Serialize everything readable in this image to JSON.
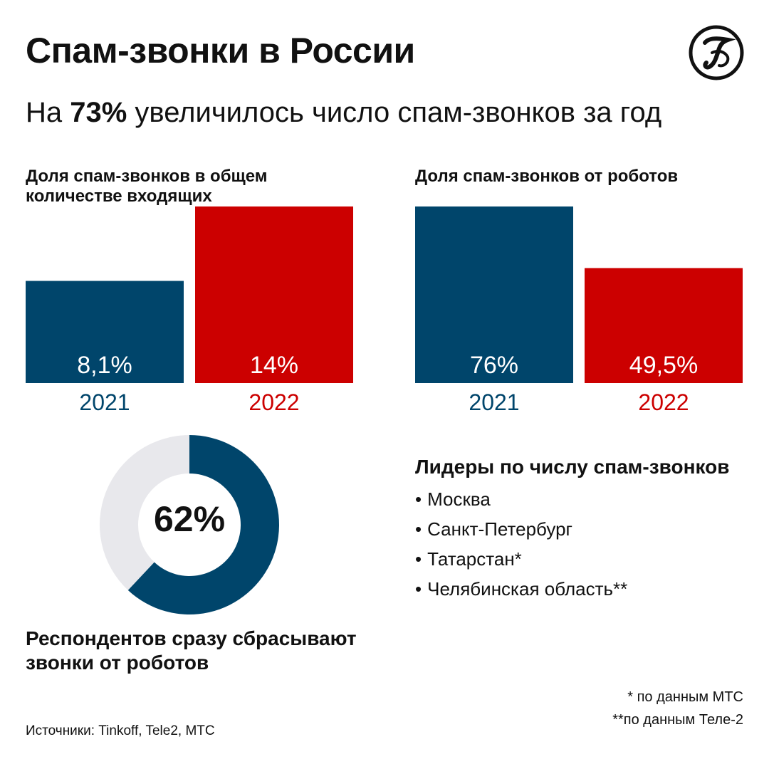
{
  "header": {
    "title": "Спам-звонки в России",
    "subtitle_prefix": "На ",
    "subtitle_highlight": "73%",
    "subtitle_suffix": " увеличилось число спам-звонков за год"
  },
  "colors": {
    "blue": "#00456b",
    "red": "#cc0000",
    "donut_track": "#e8e8ec",
    "text": "#111111"
  },
  "chart_data": [
    {
      "type": "bar",
      "title": "Доля спам-звонков в общем количестве входящих",
      "categories": [
        "2021",
        "2022"
      ],
      "values": [
        8.1,
        14
      ],
      "value_labels": [
        "8,1%",
        "14%"
      ],
      "ylim": [
        0,
        14
      ],
      "grid": false
    },
    {
      "type": "bar",
      "title": "Доля спам-звонков от роботов",
      "categories": [
        "2021",
        "2022"
      ],
      "values": [
        76,
        49.5
      ],
      "value_labels": [
        "76%",
        "49,5%"
      ],
      "ylim": [
        0,
        76
      ],
      "grid": false
    },
    {
      "type": "pie",
      "values": [
        62,
        38
      ],
      "value_label": "62%",
      "caption": "Респондентов сразу сбрасывают звонки от роботов"
    }
  ],
  "leaders": {
    "title": "Лидеры по числу спам-звонков",
    "items": [
      "Москва",
      "Санкт-Петербург",
      "Татарстан*",
      "Челябинская область**"
    ]
  },
  "notes": [
    "* по данным МТС",
    "**по данным Теле-2"
  ],
  "sources": "Источники:  Tinkoff, Tele2, МТС"
}
